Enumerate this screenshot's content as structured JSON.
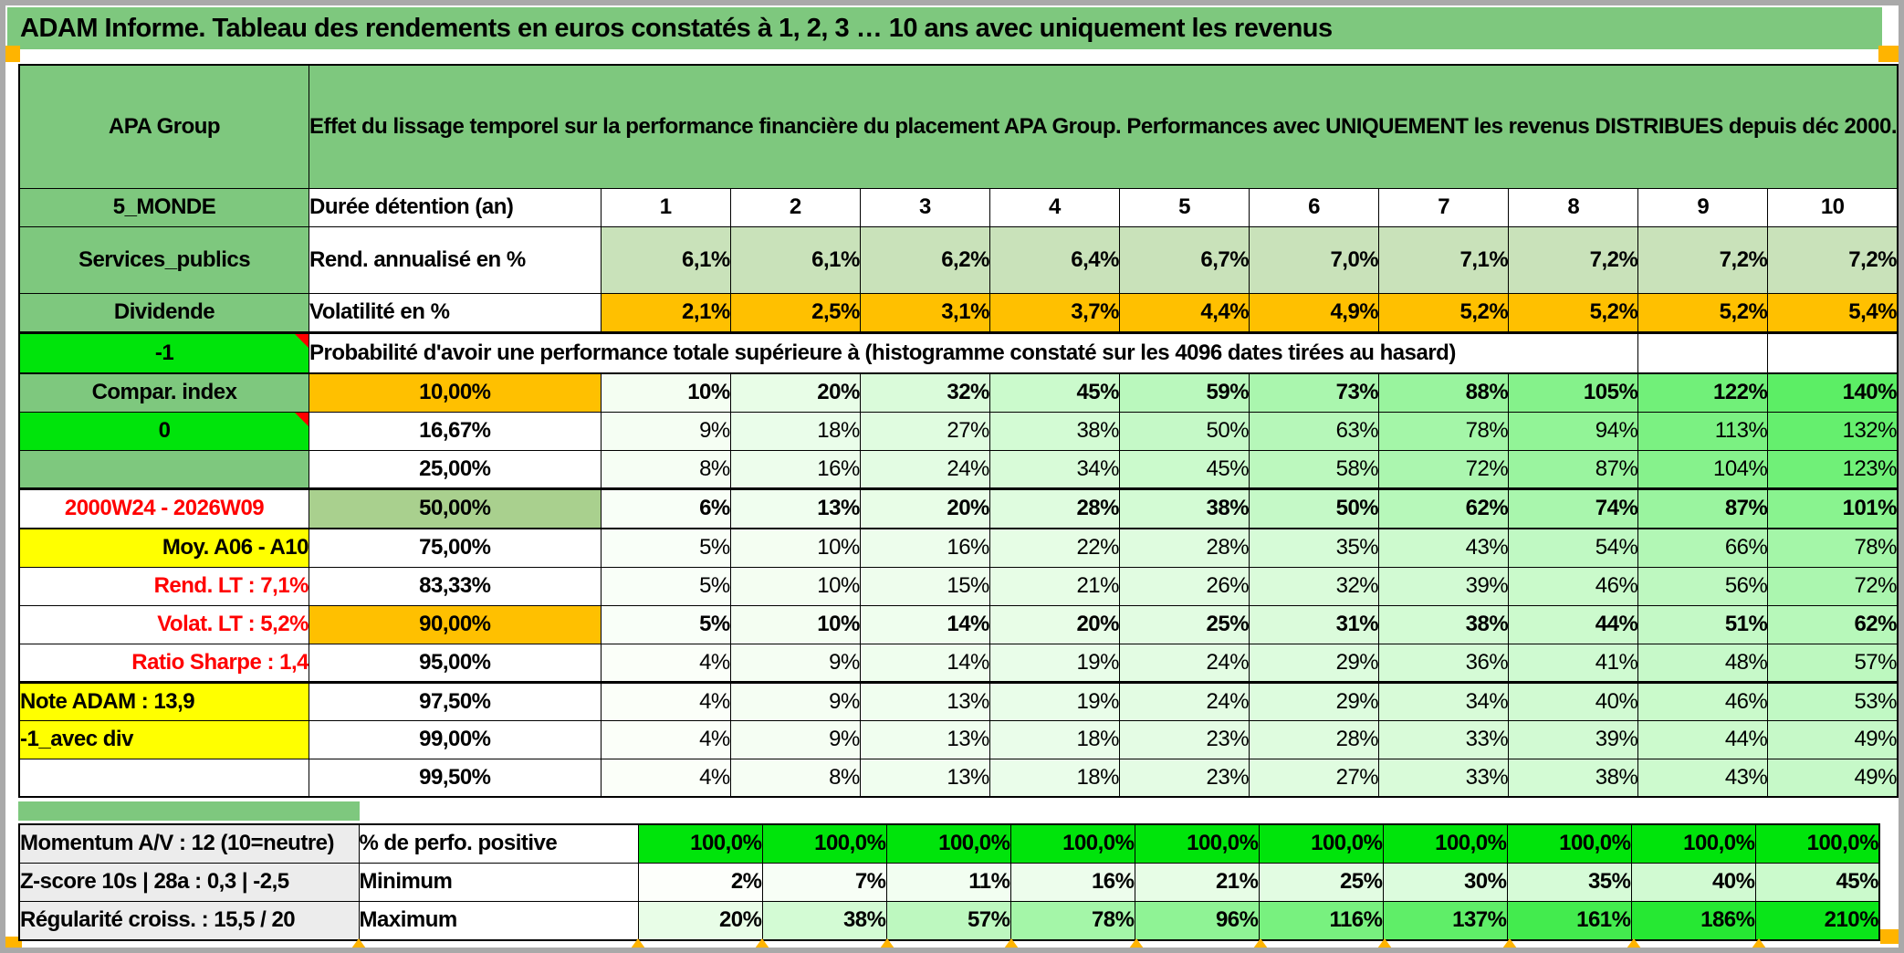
{
  "window_title": "ADAM Informe. Tableau des rendements en euros constatés à 1, 2, 3 … 10 ans avec uniquement les revenus",
  "header": {
    "product": "APA Group",
    "description": "Effet du lissage temporel sur la performance financière du placement APA Group. Performances avec UNIQUEMENT les revenus DISTRIBUES depuis déc 2000."
  },
  "main_table": {
    "duration_row": {
      "label_a": "5_MONDE",
      "label_b": "Durée détention (an)",
      "values": [
        "1",
        "2",
        "3",
        "4",
        "5",
        "6",
        "7",
        "8",
        "9",
        "10"
      ]
    },
    "return_row": {
      "label_a": "Services_publics",
      "label_b": "Rend. annualisé en %",
      "values": [
        "6,1%",
        "6,1%",
        "6,2%",
        "6,4%",
        "6,7%",
        "7,0%",
        "7,1%",
        "7,2%",
        "7,2%",
        "7,2%"
      ]
    },
    "volatility_row": {
      "label_a": "Dividende",
      "label_b": "Volatilité en %",
      "values": [
        "2,1%",
        "2,5%",
        "3,1%",
        "3,7%",
        "4,4%",
        "4,9%",
        "5,2%",
        "5,2%",
        "5,2%",
        "5,4%"
      ]
    },
    "probability_note": {
      "label_a": "-1",
      "text": "Probabilité d'avoir une performance totale supérieure à (histogramme constaté sur les 4096 dates tirées au hasard)"
    },
    "probability_rows": [
      {
        "label_a": "Compar. index",
        "a_style": "green-label",
        "threshold": "10,00%",
        "b_style": "orange",
        "bold": true,
        "values": [
          "10%",
          "20%",
          "32%",
          "45%",
          "59%",
          "73%",
          "88%",
          "105%",
          "122%",
          "140%"
        ]
      },
      {
        "label_a": "0",
        "a_style": "bright-green",
        "comment": true,
        "threshold": "16,67%",
        "values": [
          "9%",
          "18%",
          "27%",
          "38%",
          "50%",
          "63%",
          "78%",
          "94%",
          "113%",
          "132%"
        ]
      },
      {
        "label_a": "",
        "a_style": "empty-green",
        "threshold": "25,00%",
        "border": "thick",
        "values": [
          "8%",
          "16%",
          "24%",
          "34%",
          "45%",
          "58%",
          "72%",
          "87%",
          "104%",
          "123%"
        ]
      },
      {
        "label_a": "2000W24 - 2026W09",
        "a_style": "red-center",
        "threshold": "50,00%",
        "b_style": "band",
        "bold": true,
        "big": true,
        "border": "med",
        "values": [
          "6%",
          "13%",
          "20%",
          "28%",
          "38%",
          "50%",
          "62%",
          "74%",
          "87%",
          "101%"
        ]
      },
      {
        "label_a": "Moy. A06 - A10",
        "a_style": "yellow-right",
        "threshold": "75,00%",
        "values": [
          "5%",
          "10%",
          "16%",
          "22%",
          "28%",
          "35%",
          "43%",
          "54%",
          "66%",
          "78%"
        ]
      },
      {
        "label_a": "Rend. LT :   7,1%",
        "a_style": "red-right",
        "threshold": "83,33%",
        "values": [
          "5%",
          "10%",
          "15%",
          "21%",
          "26%",
          "32%",
          "39%",
          "46%",
          "56%",
          "72%"
        ]
      },
      {
        "label_a": "Volat. LT :   5,2%",
        "a_style": "red-right",
        "threshold": "90,00%",
        "b_style": "orange",
        "bold": true,
        "values": [
          "5%",
          "10%",
          "14%",
          "20%",
          "25%",
          "31%",
          "38%",
          "44%",
          "51%",
          "62%"
        ]
      },
      {
        "label_a": "Ratio Sharpe :   1,4",
        "a_style": "red-right",
        "threshold": "95,00%",
        "border": "thick",
        "values": [
          "4%",
          "9%",
          "14%",
          "19%",
          "24%",
          "29%",
          "36%",
          "41%",
          "48%",
          "57%"
        ]
      },
      {
        "label_a": "Note ADAM : 13,9",
        "a_style": "yellow-left",
        "threshold": "97,50%",
        "values": [
          "4%",
          "9%",
          "13%",
          "19%",
          "24%",
          "29%",
          "34%",
          "40%",
          "46%",
          "53%"
        ]
      },
      {
        "label_a": "-1_avec div",
        "a_style": "yellow-left",
        "threshold": "99,00%",
        "values": [
          "4%",
          "9%",
          "13%",
          "18%",
          "23%",
          "28%",
          "33%",
          "39%",
          "44%",
          "49%"
        ]
      },
      {
        "label_a": "",
        "a_style": "white",
        "threshold": "99,50%",
        "values": [
          "4%",
          "8%",
          "13%",
          "18%",
          "23%",
          "27%",
          "33%",
          "38%",
          "43%",
          "49%"
        ]
      }
    ],
    "footer_rows": [
      {
        "label_a": "Momentum A/V : 12 (10=neutre)",
        "label_b": "% de perfo. positive",
        "fill": "bright-green",
        "values": [
          "100,0%",
          "100,0%",
          "100,0%",
          "100,0%",
          "100,0%",
          "100,0%",
          "100,0%",
          "100,0%",
          "100,0%",
          "100,0%"
        ]
      },
      {
        "label_a": "Z-score 10s | 28a : 0,3 | -2,5",
        "label_b": "Minimum",
        "values": [
          "2%",
          "7%",
          "11%",
          "16%",
          "21%",
          "25%",
          "30%",
          "35%",
          "40%",
          "45%"
        ]
      },
      {
        "label_a": "Régularité croiss. : 15,5 / 20",
        "label_b": "Maximum",
        "values": [
          "20%",
          "38%",
          "57%",
          "78%",
          "96%",
          "116%",
          "137%",
          "161%",
          "186%",
          "210%"
        ]
      }
    ]
  },
  "colors": {
    "header_green": "#7ec87e",
    "bright_green": "#00e40b",
    "band_green": "#a9d08e",
    "light_green": "#c9e2ba",
    "accent_orange": "#ffc000",
    "yellow": "#ffff00",
    "label_gray": "#ececec",
    "red_text": "#ff0000",
    "marker_orange": "#ffb400",
    "frame_gray": "#a9a9a9",
    "ramp_start": "#fdfffb",
    "ramp_end": "#0ae519"
  }
}
